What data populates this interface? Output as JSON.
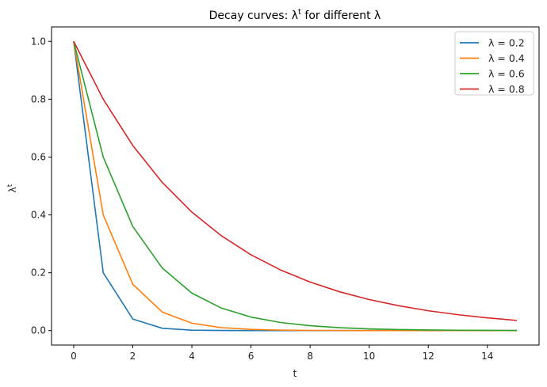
{
  "chart_data": {
    "type": "line",
    "title": "Decay curves: λ^t for different λ",
    "title_parts": {
      "prefix": "Decay curves: λ",
      "sup": "t",
      "suffix": " for different λ"
    },
    "xlabel": "t",
    "ylabel": "λ^t",
    "ylabel_parts": {
      "base": "λ",
      "sup": "t"
    },
    "x": [
      0,
      1,
      2,
      3,
      4,
      5,
      6,
      7,
      8,
      9,
      10,
      11,
      12,
      13,
      14,
      15
    ],
    "xlim": [
      -0.75,
      15.75
    ],
    "ylim": [
      -0.05,
      1.05
    ],
    "xticks": [
      0,
      2,
      4,
      6,
      8,
      10,
      12,
      14
    ],
    "xtick_labels": [
      "0",
      "2",
      "4",
      "6",
      "8",
      "10",
      "12",
      "14"
    ],
    "yticks": [
      0.0,
      0.2,
      0.4,
      0.6,
      0.8,
      1.0
    ],
    "ytick_labels": [
      "0.0",
      "0.2",
      "0.4",
      "0.6",
      "0.8",
      "1.0"
    ],
    "grid": false,
    "legend_position": "upper right",
    "series": [
      {
        "name": "λ = 0.2",
        "color": "#1f77b4",
        "values": [
          1.0,
          0.2,
          0.04,
          0.008,
          0.0016,
          0.00032,
          6.4e-05,
          1.28e-05,
          2.6e-06,
          5e-07,
          1e-07,
          0.0,
          0.0,
          0.0,
          0.0,
          0.0
        ]
      },
      {
        "name": "λ = 0.4",
        "color": "#ff7f0e",
        "values": [
          1.0,
          0.4,
          0.16,
          0.064,
          0.0256,
          0.01024,
          0.0041,
          0.00164,
          0.000655,
          0.000262,
          0.000105,
          4.2e-05,
          1.68e-05,
          6.7e-06,
          2.7e-06,
          1.1e-06
        ]
      },
      {
        "name": "λ = 0.6",
        "color": "#2ca02c",
        "values": [
          1.0,
          0.6,
          0.36,
          0.216,
          0.1296,
          0.0778,
          0.0467,
          0.028,
          0.0168,
          0.0101,
          0.006,
          0.0036,
          0.0022,
          0.0013,
          0.0008,
          0.0005
        ]
      },
      {
        "name": "λ = 0.8",
        "color": "#d62728",
        "values": [
          1.0,
          0.8,
          0.64,
          0.512,
          0.4096,
          0.3277,
          0.2621,
          0.2097,
          0.1678,
          0.1342,
          0.1074,
          0.0859,
          0.0687,
          0.055,
          0.044,
          0.0352
        ]
      }
    ]
  }
}
